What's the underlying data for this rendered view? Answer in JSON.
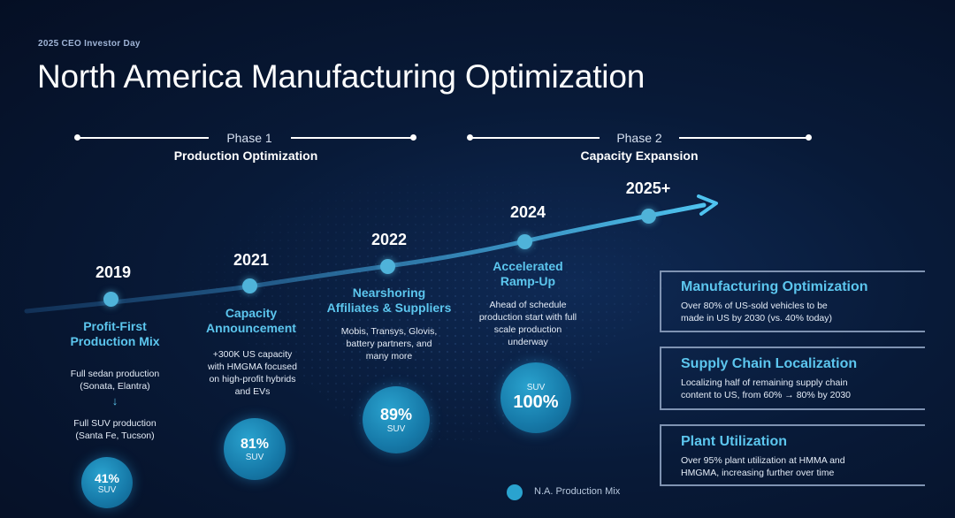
{
  "header": {
    "eyebrow": "2025 CEO Investor Day",
    "title": "North America Manufacturing Optimization"
  },
  "phases": [
    {
      "label": "Phase 1",
      "subtitle": "Production Optimization"
    },
    {
      "label": "Phase 2",
      "subtitle": "Capacity Expansion"
    }
  ],
  "milestones": [
    {
      "year": "2019",
      "title_line1": "Profit-First",
      "title_line2": "Production Mix",
      "desc1_line1": "Full sedan production",
      "desc1_line2": "(Sonata, Elantra)",
      "desc2_line1": "Full SUV production",
      "desc2_line2": "(Santa Fe, Tucson)",
      "mix_value": "41%",
      "mix_label": "SUV",
      "mix_fraction": 0.41
    },
    {
      "year": "2021",
      "title_line1": "Capacity",
      "title_line2": "Announcement",
      "desc_lines": [
        "+300K US capacity",
        "with HMGMA focused",
        "on high-profit hybrids",
        "and EVs"
      ],
      "mix_value": "81%",
      "mix_label": "SUV",
      "mix_fraction": 0.81
    },
    {
      "year": "2022",
      "title_line1": "Nearshoring",
      "title_line2": "Affiliates & Suppliers",
      "desc_lines": [
        "Mobis, Transys, Glovis,",
        "battery partners, and",
        "many more"
      ],
      "mix_value": "89%",
      "mix_label": "SUV",
      "mix_fraction": 0.89
    },
    {
      "year": "2024",
      "title_line1": "Accelerated",
      "title_line2": "Ramp-Up",
      "desc_lines": [
        "Ahead of schedule",
        "production start with full",
        "scale production",
        "underway"
      ],
      "mix_value": "100%",
      "mix_label": "SUV",
      "mix_fraction": 1.0
    },
    {
      "year": "2025+"
    }
  ],
  "panels": [
    {
      "title": "Manufacturing Optimization",
      "desc_line1": "Over 80% of US-sold vehicles to be",
      "desc_line2": "made in US by 2030 (vs. 40% today)"
    },
    {
      "title": "Supply Chain Localization",
      "desc_line1": "Localizing half of remaining supply chain",
      "desc_line2": "content to US, from 60% → 80% by 2030"
    },
    {
      "title": "Plant Utilization",
      "desc_line1": "Over 95% plant utilization at HMMA and",
      "desc_line2": "HMGMA, increasing further over time"
    }
  ],
  "legend": {
    "label": "N.A. Production Mix"
  },
  "colors": {
    "accent": "#5cc6ee",
    "bubble": "#1679a8",
    "background": "#081a38"
  }
}
